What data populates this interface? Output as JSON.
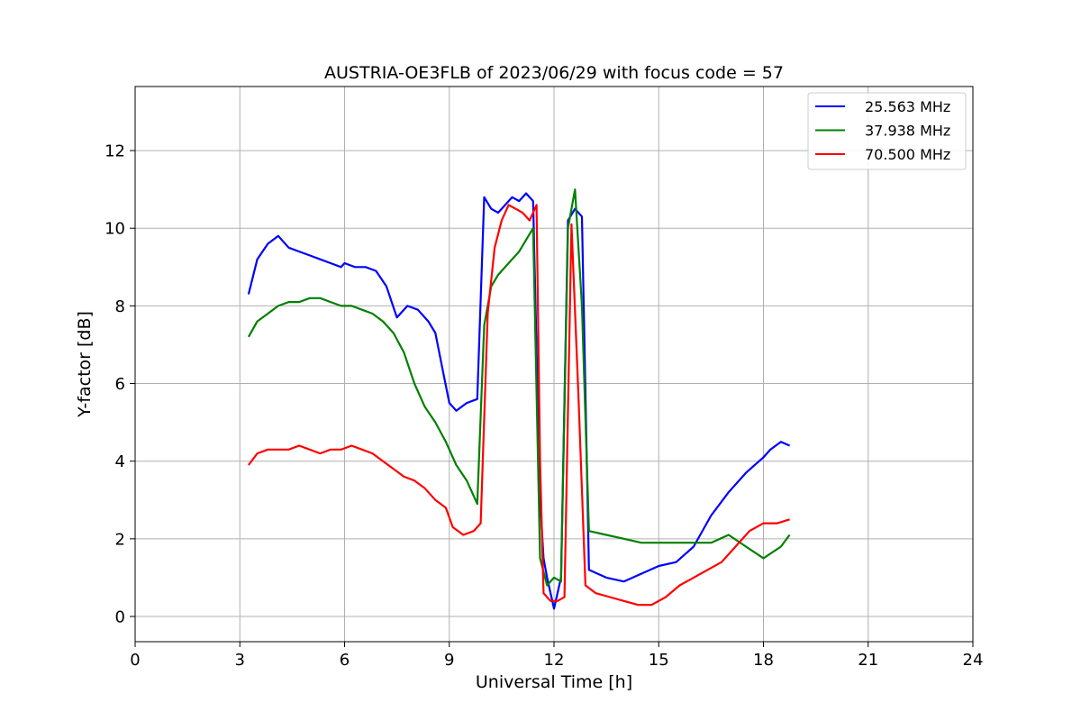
{
  "chart_data": {
    "type": "line",
    "title": "AUSTRIA-OE3FLB of 2023/06/29 with focus code = 57",
    "xlabel": "Universal Time [h]",
    "ylabel": "Y-factor [dB]",
    "xlim": [
      0,
      24
    ],
    "ylim": [
      -0.65,
      13.65
    ],
    "xticks": [
      0,
      3,
      6,
      9,
      12,
      15,
      18,
      21,
      24
    ],
    "yticks": [
      0,
      2,
      4,
      6,
      8,
      10,
      12
    ],
    "grid": true,
    "legend_position": "top-right",
    "series": [
      {
        "name": "25.563 MHz",
        "color": "#0000ff",
        "x": [
          3.25,
          3.5,
          3.8,
          4.1,
          4.4,
          4.7,
          5.0,
          5.3,
          5.6,
          5.9,
          6.0,
          6.3,
          6.6,
          6.9,
          7.2,
          7.5,
          7.8,
          8.1,
          8.4,
          8.6,
          8.8,
          9.0,
          9.2,
          9.5,
          9.8,
          10.0,
          10.2,
          10.4,
          10.6,
          10.8,
          11.0,
          11.2,
          11.4,
          11.6,
          11.7,
          11.8,
          12.0,
          12.2,
          12.4,
          12.6,
          12.8,
          13.0,
          13.5,
          14.0,
          14.5,
          15.0,
          15.5,
          16.0,
          16.5,
          17.0,
          17.5,
          18.0,
          18.2,
          18.5,
          18.75
        ],
        "y": [
          8.3,
          9.2,
          9.6,
          9.8,
          9.5,
          9.4,
          9.3,
          9.2,
          9.1,
          9.0,
          9.1,
          9.0,
          9.0,
          8.9,
          8.5,
          7.7,
          8.0,
          7.9,
          7.6,
          7.3,
          6.4,
          5.5,
          5.3,
          5.5,
          5.6,
          10.8,
          10.5,
          10.4,
          10.6,
          10.8,
          10.7,
          10.9,
          10.7,
          3.0,
          1.5,
          1.0,
          0.2,
          1.0,
          10.2,
          10.5,
          10.3,
          1.2,
          1.0,
          0.9,
          1.1,
          1.3,
          1.4,
          1.8,
          2.6,
          3.2,
          3.7,
          4.1,
          4.3,
          4.5,
          4.4
        ]
      },
      {
        "name": "37.938 MHz",
        "color": "#008000",
        "x": [
          3.25,
          3.5,
          3.8,
          4.1,
          4.4,
          4.7,
          5.0,
          5.3,
          5.6,
          5.9,
          6.2,
          6.5,
          6.8,
          7.1,
          7.4,
          7.7,
          8.0,
          8.3,
          8.6,
          8.9,
          9.2,
          9.5,
          9.8,
          10.0,
          10.2,
          10.4,
          10.6,
          10.8,
          11.0,
          11.2,
          11.4,
          11.6,
          11.8,
          12.0,
          12.2,
          12.4,
          12.6,
          12.8,
          13.0,
          13.5,
          14.0,
          14.5,
          15.0,
          15.5,
          16.0,
          16.5,
          17.0,
          17.5,
          18.0,
          18.5,
          18.75
        ],
        "y": [
          7.2,
          7.6,
          7.8,
          8.0,
          8.1,
          8.1,
          8.2,
          8.2,
          8.1,
          8.0,
          8.0,
          7.9,
          7.8,
          7.6,
          7.3,
          6.8,
          6.0,
          5.4,
          5.0,
          4.5,
          3.9,
          3.5,
          2.9,
          7.5,
          8.5,
          8.8,
          9.0,
          9.2,
          9.4,
          9.7,
          10.0,
          1.5,
          0.8,
          1.0,
          0.9,
          10.0,
          11.0,
          8.0,
          2.2,
          2.1,
          2.0,
          1.9,
          1.9,
          1.9,
          1.9,
          1.9,
          2.1,
          1.8,
          1.5,
          1.8,
          2.1
        ]
      },
      {
        "name": "70.500 MHz",
        "color": "#ff0000",
        "x": [
          3.25,
          3.5,
          3.8,
          4.1,
          4.4,
          4.7,
          5.0,
          5.3,
          5.6,
          5.9,
          6.2,
          6.5,
          6.8,
          7.1,
          7.4,
          7.7,
          8.0,
          8.3,
          8.6,
          8.9,
          9.1,
          9.4,
          9.7,
          9.9,
          10.1,
          10.3,
          10.5,
          10.7,
          10.9,
          11.1,
          11.3,
          11.5,
          11.6,
          11.7,
          11.9,
          12.1,
          12.3,
          12.5,
          12.7,
          12.9,
          13.2,
          13.6,
          14.0,
          14.4,
          14.8,
          15.2,
          15.6,
          16.0,
          16.4,
          16.8,
          17.2,
          17.6,
          18.0,
          18.4,
          18.75
        ],
        "y": [
          3.9,
          4.2,
          4.3,
          4.3,
          4.3,
          4.4,
          4.3,
          4.2,
          4.3,
          4.3,
          4.4,
          4.3,
          4.2,
          4.0,
          3.8,
          3.6,
          3.5,
          3.3,
          3.0,
          2.8,
          2.3,
          2.1,
          2.2,
          2.4,
          7.8,
          9.5,
          10.2,
          10.6,
          10.5,
          10.4,
          10.2,
          10.6,
          4.0,
          0.6,
          0.4,
          0.4,
          0.5,
          10.1,
          5.7,
          0.8,
          0.6,
          0.5,
          0.4,
          0.3,
          0.3,
          0.5,
          0.8,
          1.0,
          1.2,
          1.4,
          1.8,
          2.2,
          2.4,
          2.4,
          2.5
        ]
      }
    ]
  }
}
